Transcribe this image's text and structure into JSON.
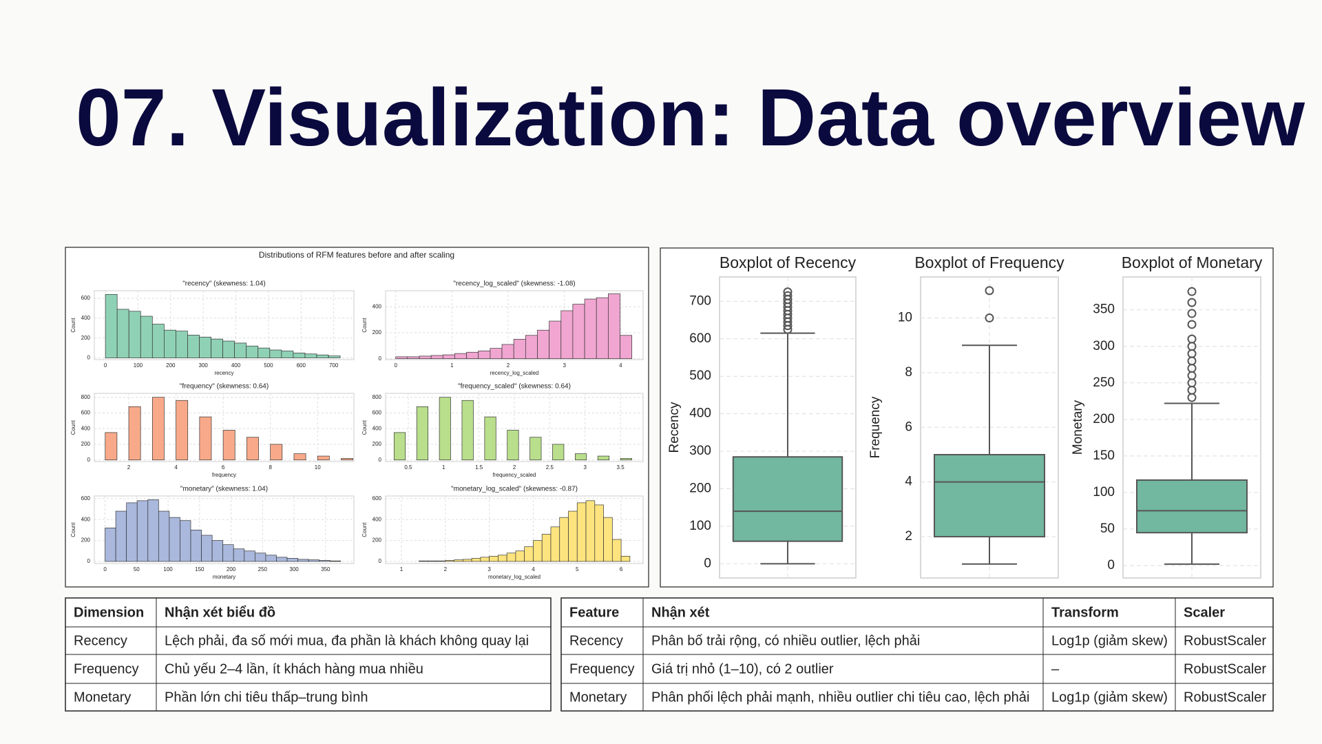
{
  "title": "07. Visualization: Data overview",
  "figure_title": "Distributions of RFM features before and after scaling",
  "chart_data": [
    {
      "type": "histogram",
      "title": "\"recency\" (skewness: 1.04)",
      "xlabel": "recency",
      "ylabel": "Count",
      "color": "#8fd1b5",
      "bins": [
        0,
        36,
        72,
        108,
        144,
        180,
        216,
        252,
        288,
        324,
        360,
        396,
        432,
        468,
        504,
        540,
        576,
        612,
        648,
        684,
        720
      ],
      "values": [
        640,
        490,
        470,
        420,
        340,
        280,
        270,
        230,
        210,
        190,
        170,
        150,
        120,
        100,
        80,
        70,
        50,
        40,
        30,
        20
      ],
      "xlim": [
        -34,
        762
      ],
      "ylim": [
        -17,
        677
      ],
      "xticks": [
        0,
        100,
        200,
        300,
        400,
        500,
        600,
        700
      ],
      "yticks": [
        0,
        200,
        400,
        600
      ],
      "grid": true
    },
    {
      "type": "histogram",
      "title": "\"recency_log_scaled\" (skewness: -1.08)",
      "xlabel": "recency_log_scaled",
      "ylabel": "Count",
      "color": "#f0a6d0",
      "bins": [
        0,
        0.21,
        0.42,
        0.63,
        0.84,
        1.05,
        1.26,
        1.47,
        1.68,
        1.89,
        2.1,
        2.31,
        2.52,
        2.73,
        2.94,
        3.15,
        3.36,
        3.57,
        3.78,
        3.99,
        4.2
      ],
      "values": [
        15,
        15,
        20,
        25,
        30,
        40,
        50,
        60,
        80,
        110,
        150,
        180,
        220,
        290,
        370,
        420,
        460,
        470,
        500,
        180
      ],
      "xlim": [
        -0.18,
        4.4
      ],
      "ylim": [
        -7,
        524
      ],
      "xticks": [
        0,
        1,
        2,
        3,
        4
      ],
      "yticks": [
        0,
        200,
        400
      ],
      "grid": true
    },
    {
      "type": "histogram",
      "title": "\"frequency\" (skewness: 0.64)",
      "xlabel": "frequency",
      "ylabel": "Count",
      "color": "#f8a98a",
      "bins": [
        1,
        1.5,
        2,
        2.5,
        3,
        3.5,
        4,
        4.5,
        5,
        5.5,
        6,
        6.5,
        7,
        7.5,
        8,
        8.5,
        9,
        9.5,
        10,
        10.5,
        11,
        11.5
      ],
      "values": [
        350,
        0,
        680,
        0,
        800,
        0,
        760,
        0,
        550,
        0,
        380,
        0,
        290,
        0,
        200,
        0,
        80,
        0,
        50,
        0,
        20
      ],
      "xlim": [
        0.54,
        11.54
      ],
      "ylim": [
        -20,
        850
      ],
      "xticks": [
        2,
        4,
        6,
        8,
        10
      ],
      "yticks": [
        0,
        200,
        400,
        600,
        800
      ],
      "grid": true
    },
    {
      "type": "histogram",
      "title": "\"frequency_scaled\" (skewness: 0.64)",
      "xlabel": "frequency_scaled",
      "ylabel": "Count",
      "color": "#b9de8c",
      "bins": [
        0.3,
        0.46,
        0.62,
        0.78,
        0.94,
        1.1,
        1.26,
        1.42,
        1.58,
        1.74,
        1.9,
        2.06,
        2.22,
        2.38,
        2.54,
        2.7,
        2.86,
        3.02,
        3.18,
        3.34,
        3.5,
        3.66
      ],
      "values": [
        350,
        0,
        680,
        0,
        800,
        0,
        760,
        0,
        550,
        0,
        380,
        0,
        290,
        0,
        200,
        0,
        80,
        0,
        50,
        0,
        20
      ],
      "xlim": [
        0.18,
        3.82
      ],
      "ylim": [
        -20,
        850
      ],
      "xticks": [
        0.5,
        1.0,
        1.5,
        2.0,
        2.5,
        3.0,
        3.5
      ],
      "yticks": [
        0,
        200,
        400,
        600,
        800
      ],
      "grid": true
    },
    {
      "type": "histogram",
      "title": "\"monetary\" (skewness: 1.04)",
      "xlabel": "monetary",
      "ylabel": "Count",
      "color": "#a9b8dc",
      "bins": [
        0,
        17,
        34,
        51,
        68,
        85,
        102,
        119,
        136,
        153,
        170,
        187,
        204,
        221,
        238,
        255,
        272,
        289,
        306,
        323,
        340,
        357,
        374
      ],
      "values": [
        320,
        480,
        560,
        580,
        590,
        480,
        420,
        390,
        300,
        250,
        200,
        160,
        120,
        100,
        80,
        60,
        40,
        30,
        20,
        15,
        10,
        5
      ],
      "xlim": [
        -17,
        395
      ],
      "ylim": [
        -20,
        625
      ],
      "xticks": [
        0,
        50,
        100,
        150,
        200,
        250,
        300,
        350
      ],
      "yticks": [
        0,
        200,
        400,
        600
      ],
      "grid": true
    },
    {
      "type": "histogram",
      "title": "\"monetary_log_scaled\" (skewness: -0.87)",
      "xlabel": "monetary_log_scaled",
      "ylabel": "Count",
      "color": "#fde47f",
      "bins": [
        1.4,
        1.6,
        1.8,
        2.0,
        2.2,
        2.4,
        2.6,
        2.8,
        3.0,
        3.2,
        3.4,
        3.6,
        3.8,
        4.0,
        4.2,
        4.4,
        4.6,
        4.8,
        5.0,
        5.2,
        5.4,
        5.6,
        5.8,
        6.0,
        6.2
      ],
      "values": [
        5,
        5,
        5,
        10,
        15,
        20,
        30,
        40,
        50,
        60,
        80,
        100,
        140,
        200,
        260,
        330,
        420,
        480,
        560,
        580,
        540,
        420,
        210,
        50
      ],
      "xlim": [
        0.64,
        6.5
      ],
      "ylim": [
        -20,
        625
      ],
      "xticks": [
        1,
        2,
        3,
        4,
        5,
        6
      ],
      "yticks": [
        0,
        200,
        400,
        600
      ],
      "grid": true
    },
    {
      "type": "box",
      "title": "Boxplot of Recency",
      "ylabel": "Recency",
      "color": "#72b7a0",
      "min": 0,
      "q1": 60,
      "median": 140,
      "q3": 285,
      "max": 615,
      "outliers": [
        625,
        635,
        645,
        655,
        665,
        675,
        685,
        695,
        705,
        715,
        725
      ],
      "ylim": [
        -38,
        765
      ],
      "yticks": [
        0,
        100,
        200,
        300,
        400,
        500,
        600,
        700
      ],
      "grid": true
    },
    {
      "type": "box",
      "title": "Boxplot of Frequency",
      "ylabel": "Frequency",
      "color": "#72b7a0",
      "min": 1,
      "q1": 2,
      "median": 4,
      "q3": 5,
      "max": 9,
      "outliers": [
        10,
        11
      ],
      "ylim": [
        0.49,
        11.5
      ],
      "yticks": [
        2,
        4,
        6,
        8,
        10
      ],
      "grid": true
    },
    {
      "type": "box",
      "title": "Boxplot of Monetary",
      "ylabel": "Monetary",
      "color": "#72b7a0",
      "min": 2,
      "q1": 45,
      "median": 75,
      "q3": 117,
      "max": 222,
      "outliers": [
        230,
        240,
        250,
        260,
        270,
        280,
        290,
        300,
        310,
        330,
        345,
        360,
        375
      ],
      "ylim": [
        -17,
        395
      ],
      "yticks": [
        0,
        50,
        100,
        150,
        200,
        250,
        300,
        350
      ],
      "grid": true
    }
  ],
  "tables": [
    {
      "header": [
        "Dimension",
        "Nhận xét biểu đồ"
      ],
      "rows": [
        [
          "Recency",
          "Lệch phải, đa số mới mua, đa phần là khách không quay lại"
        ],
        [
          "Frequency",
          "Chủ yếu 2–4 lần, ít khách hàng mua nhiều"
        ],
        [
          "Monetary",
          "Phần lớn chi tiêu thấp–trung bình"
        ]
      ]
    },
    {
      "header": [
        "Feature",
        "Nhận xét",
        "Transform",
        "Scaler"
      ],
      "rows": [
        [
          "Recency",
          "Phân bố trải rộng, có nhiều outlier, lệch phải",
          "Log1p (giảm skew)",
          "RobustScaler"
        ],
        [
          "Frequency",
          "Giá trị nhỏ (1–10), có 2 outlier",
          "–",
          "RobustScaler"
        ],
        [
          "Monetary",
          "Phân phối lệch phải mạnh, nhiều outlier chi tiêu cao, lệch phải",
          "Log1p (giảm skew)",
          "RobustScaler"
        ]
      ]
    }
  ]
}
